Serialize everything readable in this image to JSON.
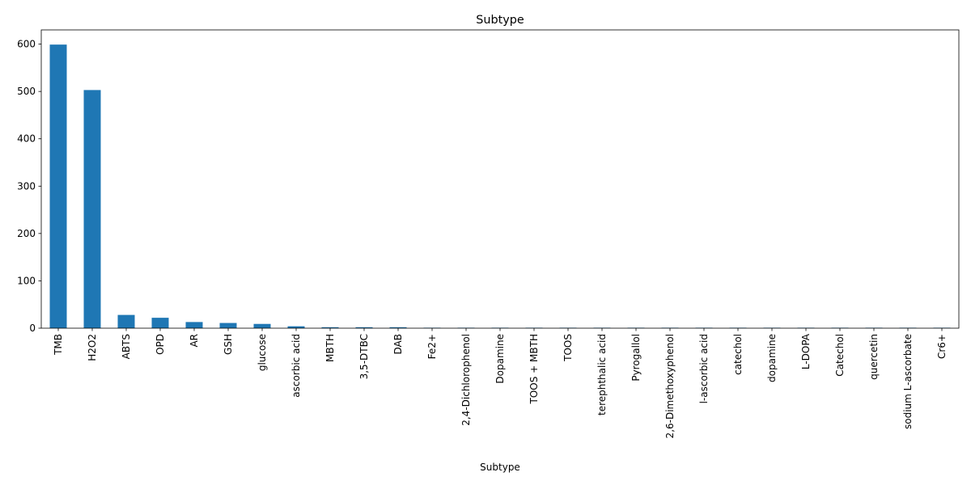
{
  "chart_data": {
    "type": "bar",
    "title": "Subtype",
    "xlabel": "Subtype",
    "ylabel": "",
    "ylim": [
      0,
      630
    ],
    "yticks": [
      0,
      100,
      200,
      300,
      400,
      500,
      600
    ],
    "bar_color": "#1f77b4",
    "grid": false,
    "legend": "none",
    "categories": [
      "TMB",
      "H2O2",
      "ABTS",
      "OPD",
      "AR",
      "GSH",
      "glucose",
      "ascorbic acid",
      "MBTH",
      "3,5-DTBC",
      "DAB",
      "Fe2+",
      "2,4-Dichlorophenol",
      "Dopamine",
      "TOOS + MBTH",
      "TOOS",
      "terephthalic acid",
      "Pyrogallol",
      "2,6-Dimethoxyphenol",
      "l-ascorbic acid",
      "catechol",
      "dopamine",
      "L-DOPA",
      "Catechol",
      "quercetin",
      "sodium L-ascorbate",
      "Cr6+"
    ],
    "values": [
      599,
      503,
      28,
      22,
      13,
      11,
      9,
      4,
      2,
      2,
      2,
      1,
      1,
      1,
      1,
      1,
      1,
      1,
      1,
      1,
      1,
      1,
      1,
      1,
      1,
      1,
      1
    ]
  }
}
